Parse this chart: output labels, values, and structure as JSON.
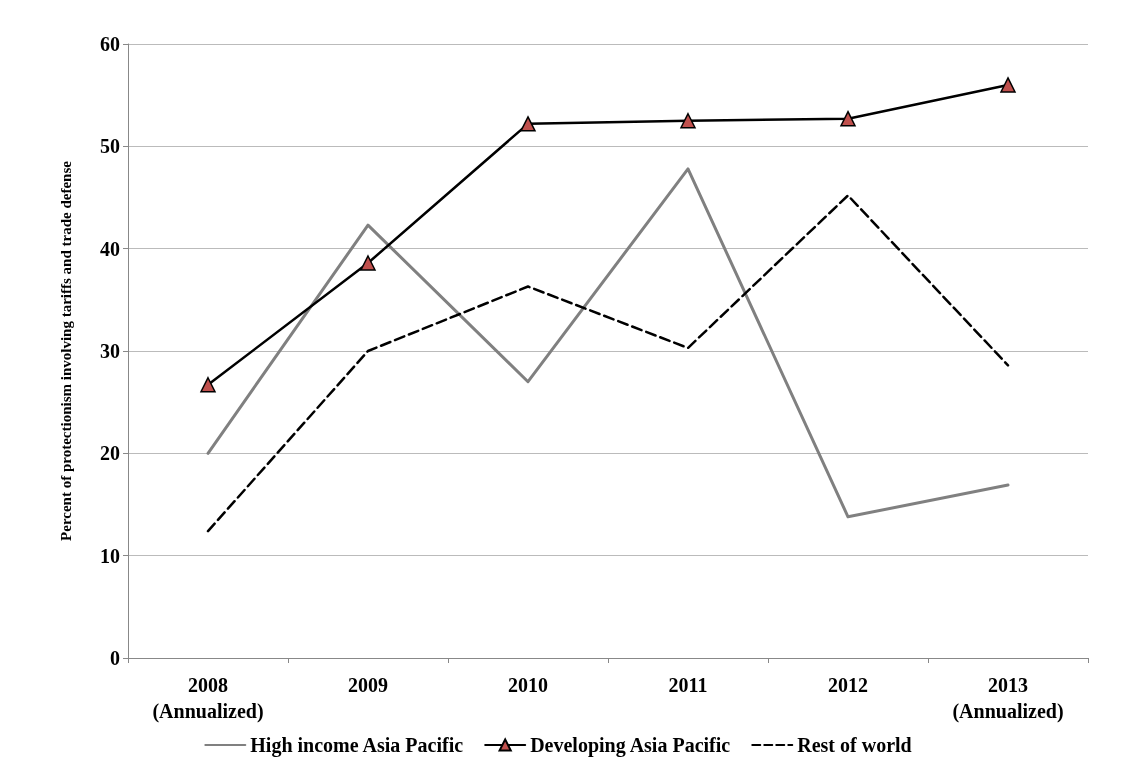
{
  "chart_data": {
    "type": "line",
    "ylabel": "Percent of protectionism involving tariffs and trade defense",
    "categories": [
      "2008\n(Annualized)",
      "2009",
      "2010",
      "2011",
      "2012",
      "2013\n(Annualized)"
    ],
    "series": [
      {
        "name": "High income Asia Pacific",
        "color": "#808080",
        "marker": "none",
        "line_style": "solid",
        "values": [
          20.0,
          42.3,
          27.0,
          47.8,
          13.8,
          16.9
        ]
      },
      {
        "name": "Developing Asia Pacific",
        "color": "#000000",
        "marker": "triangle",
        "line_style": "solid",
        "values": [
          26.7,
          38.6,
          52.2,
          52.5,
          52.7,
          56.0
        ]
      },
      {
        "name": "Rest of world",
        "color": "#000000",
        "marker": "none",
        "line_style": "dashed",
        "values": [
          12.4,
          30.0,
          36.3,
          30.3,
          45.2,
          28.6
        ]
      }
    ],
    "ylim": [
      0,
      60
    ],
    "yticks": [
      0,
      10,
      20,
      30,
      40,
      50,
      60
    ],
    "grid": "y",
    "legend": "bottom"
  }
}
